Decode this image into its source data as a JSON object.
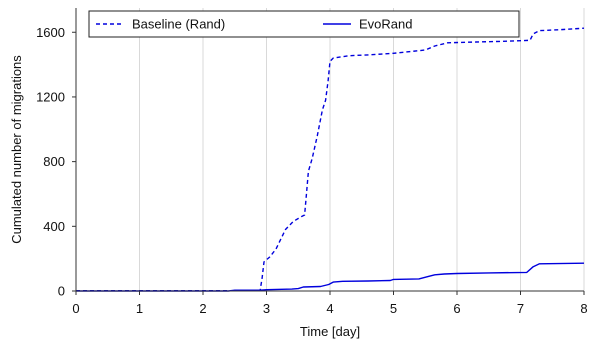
{
  "chart_data": {
    "type": "line",
    "title": "",
    "xlabel": "Time [day]",
    "ylabel": "Cumulated number of migrations",
    "xlim": [
      0,
      8
    ],
    "ylim": [
      0,
      1750
    ],
    "xticks": [
      0,
      1,
      2,
      3,
      4,
      5,
      6,
      7,
      8
    ],
    "yticks": [
      0,
      400,
      800,
      1200,
      1600
    ],
    "grid": "vertical",
    "legend_position": "top",
    "series": [
      {
        "name": "Baseline (Rand)",
        "color": "#0000dd",
        "style": "dashed",
        "points": [
          [
            0,
            2
          ],
          [
            2.5,
            2
          ],
          [
            2.9,
            2
          ],
          [
            2.93,
            80
          ],
          [
            2.96,
            180
          ],
          [
            3.05,
            210
          ],
          [
            3.15,
            260
          ],
          [
            3.3,
            380
          ],
          [
            3.42,
            430
          ],
          [
            3.55,
            460
          ],
          [
            3.6,
            470
          ],
          [
            3.62,
            560
          ],
          [
            3.66,
            740
          ],
          [
            3.72,
            820
          ],
          [
            3.8,
            960
          ],
          [
            3.88,
            1120
          ],
          [
            3.93,
            1180
          ],
          [
            3.97,
            1300
          ],
          [
            4.0,
            1420
          ],
          [
            4.05,
            1440
          ],
          [
            4.3,
            1455
          ],
          [
            4.6,
            1460
          ],
          [
            5.0,
            1470
          ],
          [
            5.5,
            1490
          ],
          [
            5.65,
            1515
          ],
          [
            5.85,
            1535
          ],
          [
            6.3,
            1540
          ],
          [
            6.8,
            1545
          ],
          [
            7.15,
            1550
          ],
          [
            7.2,
            1590
          ],
          [
            7.3,
            1610
          ],
          [
            7.6,
            1615
          ],
          [
            8.0,
            1625
          ]
        ]
      },
      {
        "name": "EvoRand",
        "color": "#0000dd",
        "style": "solid",
        "points": [
          [
            0,
            0
          ],
          [
            2.4,
            0
          ],
          [
            2.5,
            5
          ],
          [
            2.9,
            5
          ],
          [
            3.0,
            8
          ],
          [
            3.4,
            12
          ],
          [
            3.5,
            15
          ],
          [
            3.58,
            25
          ],
          [
            3.85,
            28
          ],
          [
            3.98,
            40
          ],
          [
            4.05,
            55
          ],
          [
            4.2,
            60
          ],
          [
            4.6,
            62
          ],
          [
            4.95,
            65
          ],
          [
            5.0,
            72
          ],
          [
            5.4,
            75
          ],
          [
            5.55,
            90
          ],
          [
            5.65,
            100
          ],
          [
            5.8,
            105
          ],
          [
            6.0,
            108
          ],
          [
            6.5,
            112
          ],
          [
            7.1,
            115
          ],
          [
            7.2,
            150
          ],
          [
            7.3,
            168
          ],
          [
            8.0,
            172
          ]
        ]
      }
    ]
  }
}
